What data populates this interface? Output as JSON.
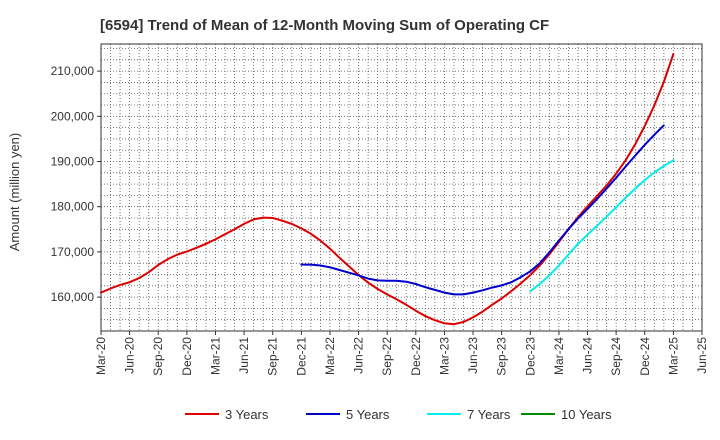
{
  "chart_data": {
    "type": "line",
    "title": "[6594]  Trend of Mean of 12-Month Moving Sum of Operating CF",
    "xlabel": "",
    "ylabel": "Amount (million yen)",
    "ylim": [
      152500,
      216000
    ],
    "y_ticks": [
      160000,
      170000,
      180000,
      190000,
      200000,
      210000
    ],
    "y_tick_labels": [
      "160,000",
      "170,000",
      "180,000",
      "190,000",
      "200,000",
      "210,000"
    ],
    "x_start": "Mar-20",
    "x_ticks": [
      "Mar-20",
      "Jun-20",
      "Sep-20",
      "Dec-20",
      "Mar-21",
      "Jun-21",
      "Sep-21",
      "Dec-21",
      "Mar-22",
      "Jun-22",
      "Sep-22",
      "Dec-22",
      "Mar-23",
      "Jun-23",
      "Sep-23",
      "Dec-23",
      "Mar-24",
      "Jun-24",
      "Sep-24",
      "Dec-24",
      "Mar-25",
      "Jun-25"
    ],
    "grid": true,
    "series": [
      {
        "name": "3 Years",
        "color": "#dd0000",
        "start_month_index": 0,
        "values": [
          161000,
          161900,
          162700,
          163300,
          164200,
          165500,
          167100,
          168400,
          169400,
          170100,
          170900,
          171800,
          172800,
          173900,
          175000,
          176200,
          177200,
          177600,
          177500,
          176900,
          176200,
          175200,
          174000,
          172500,
          170700,
          168700,
          166800,
          164900,
          163200,
          161800,
          160600,
          159500,
          158300,
          157000,
          155800,
          154900,
          154200,
          154000,
          154500,
          155500,
          156800,
          158300,
          159700,
          161300,
          163000,
          164900,
          167000,
          169500,
          172200,
          175000,
          177700,
          180100,
          182400,
          184700,
          187300,
          190300,
          193800,
          197900,
          202400,
          207600,
          213800
        ]
      },
      {
        "name": "5 Years",
        "color": "#0000cc",
        "start_month_index": 21,
        "values": [
          167200,
          167200,
          167000,
          166600,
          166000,
          165400,
          164800,
          164100,
          163700,
          163600,
          163600,
          163400,
          162900,
          162200,
          161600,
          161000,
          160600,
          160600,
          161000,
          161500,
          162100,
          162600,
          163300,
          164400,
          165700,
          167500,
          169900,
          172500,
          175000,
          177400,
          179500,
          181700,
          184000,
          186400,
          188900,
          191300,
          193700,
          195900,
          198000
        ]
      },
      {
        "name": "7 Years",
        "color": "#00eeee",
        "start_month_index": 45,
        "values": [
          161300,
          162900,
          164800,
          167000,
          169400,
          171800,
          173800,
          175800,
          177800,
          179900,
          182000,
          184000,
          185900,
          187600,
          189000,
          190300
        ]
      },
      {
        "name": "10 Years",
        "color": "#008800",
        "start_month_index": 0,
        "values": []
      }
    ]
  }
}
